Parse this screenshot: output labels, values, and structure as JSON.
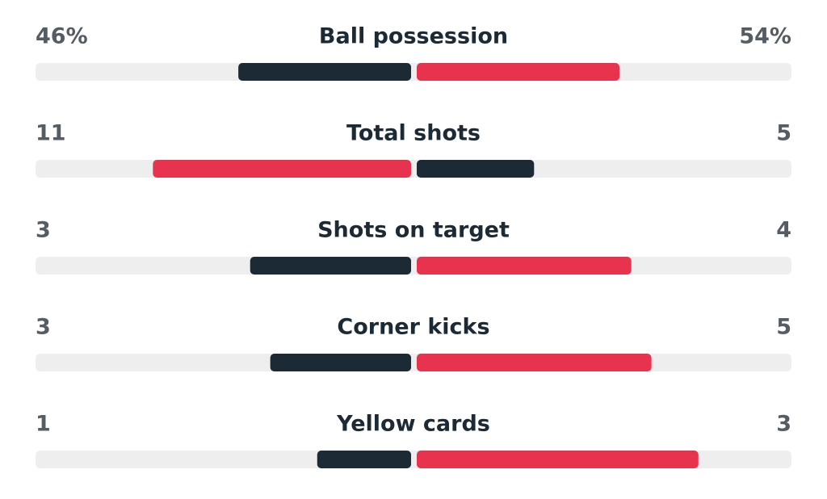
{
  "colors": {
    "leading": "#e8334f",
    "trailing": "#1b2a35",
    "track": "#eeeeee"
  },
  "rows": [
    {
      "label": "Ball possession",
      "home": 46,
      "away": 54,
      "home_label": "46%",
      "away_label": "54%"
    },
    {
      "label": "Total shots",
      "home": 11,
      "away": 5
    },
    {
      "label": "Shots on target",
      "home": 3,
      "away": 4
    },
    {
      "label": "Corner kicks",
      "home": 3,
      "away": 5
    },
    {
      "label": "Yellow cards",
      "home": 1,
      "away": 3
    }
  ]
}
